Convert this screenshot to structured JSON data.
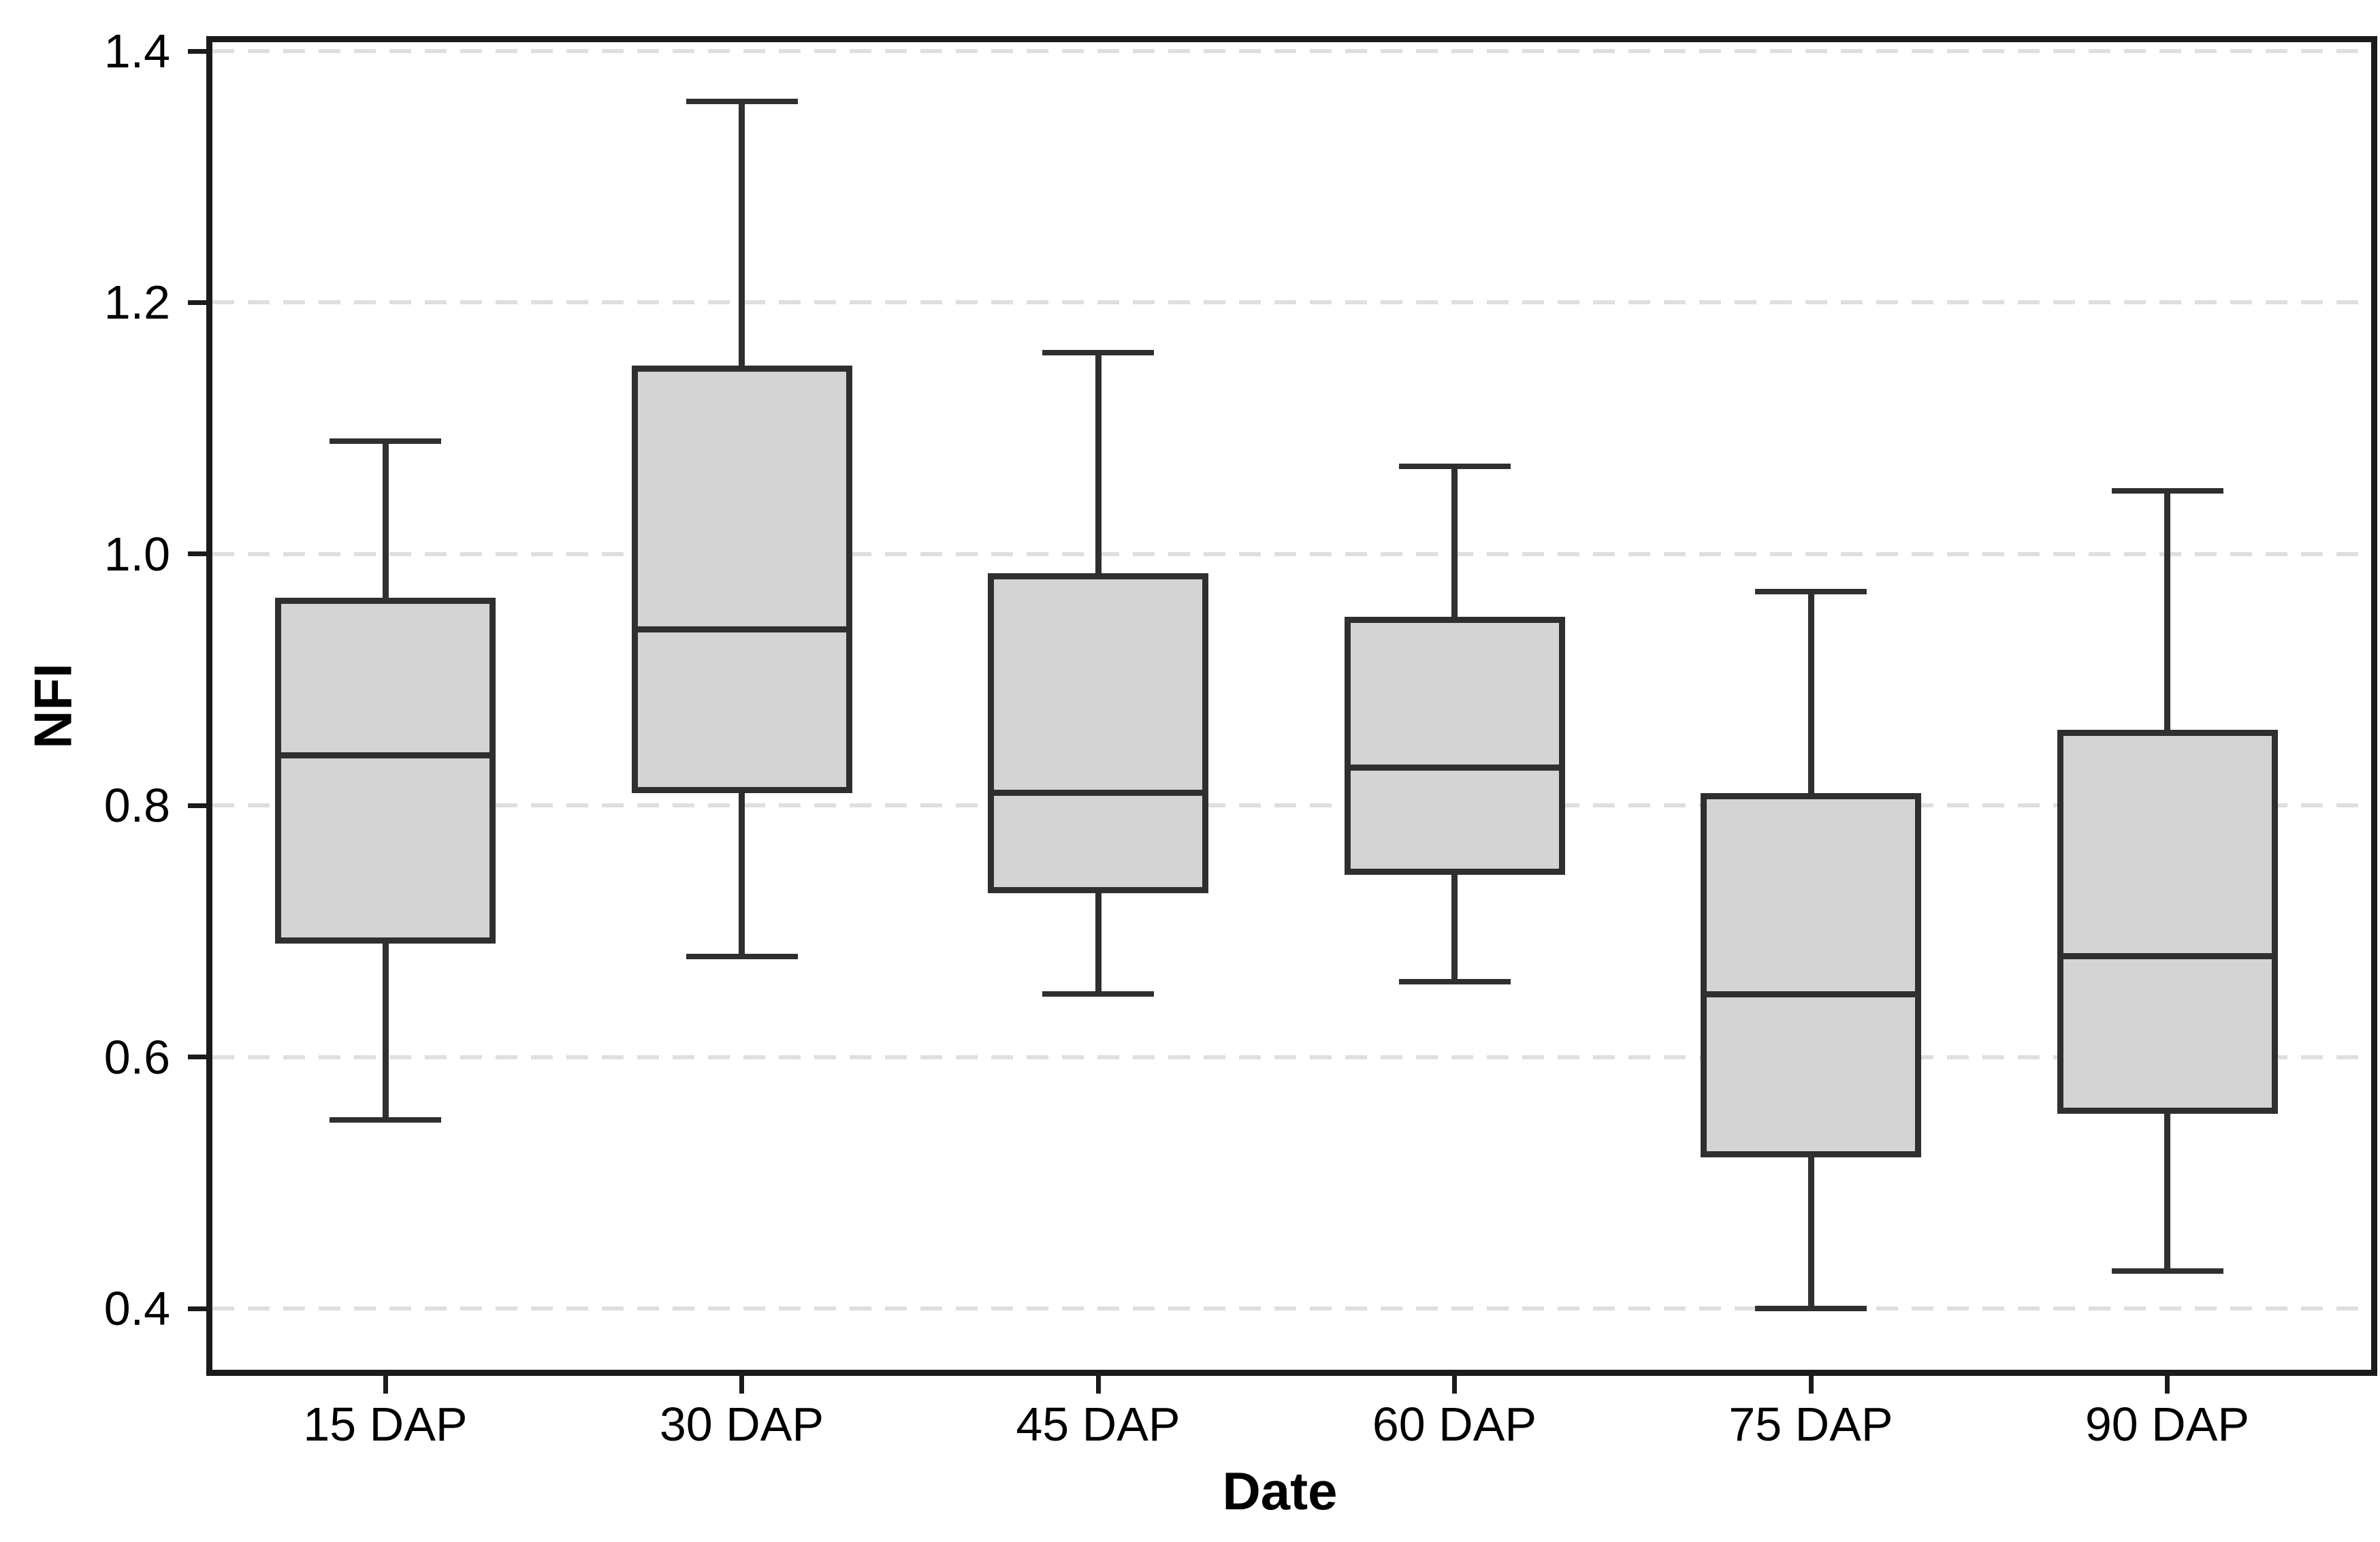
{
  "chart_data": {
    "type": "boxplot",
    "title": "",
    "xlabel": "Date",
    "ylabel": "NFI",
    "categories": [
      "15 DAP",
      "30 DAP",
      "45 DAP",
      "60 DAP",
      "75 DAP",
      "90 DAP"
    ],
    "series": [
      {
        "category": "15 DAP",
        "whisker_low": 0.55,
        "q1": 0.69,
        "median": 0.84,
        "q3": 0.965,
        "whisker_high": 1.09
      },
      {
        "category": "30 DAP",
        "whisker_low": 0.68,
        "q1": 0.81,
        "median": 0.94,
        "q3": 1.15,
        "whisker_high": 1.36
      },
      {
        "category": "45 DAP",
        "whisker_low": 0.65,
        "q1": 0.73,
        "median": 0.81,
        "q3": 0.985,
        "whisker_high": 1.16
      },
      {
        "category": "60 DAP",
        "whisker_low": 0.66,
        "q1": 0.745,
        "median": 0.83,
        "q3": 0.95,
        "whisker_high": 1.07
      },
      {
        "category": "75 DAP",
        "whisker_low": 0.4,
        "q1": 0.52,
        "median": 0.65,
        "q3": 0.81,
        "whisker_high": 0.97
      },
      {
        "category": "90 DAP",
        "whisker_low": 0.43,
        "q1": 0.555,
        "median": 0.68,
        "q3": 0.86,
        "whisker_high": 1.05
      }
    ],
    "ytick_labels": [
      "0.4",
      "0.6",
      "0.8",
      "1.0",
      "1.2",
      "1.4"
    ],
    "ylim": [
      0.351,
      1.409
    ],
    "grid": "horizontal dashed gridlines at each y tick",
    "legend": "none",
    "colors": {
      "background": "#ffffff",
      "frame": "#1b1b1b",
      "box_fill": "#d4d4d4",
      "box_line": "#2f2f2f",
      "gridline": "#dfdfdf",
      "text": "#000000"
    }
  }
}
